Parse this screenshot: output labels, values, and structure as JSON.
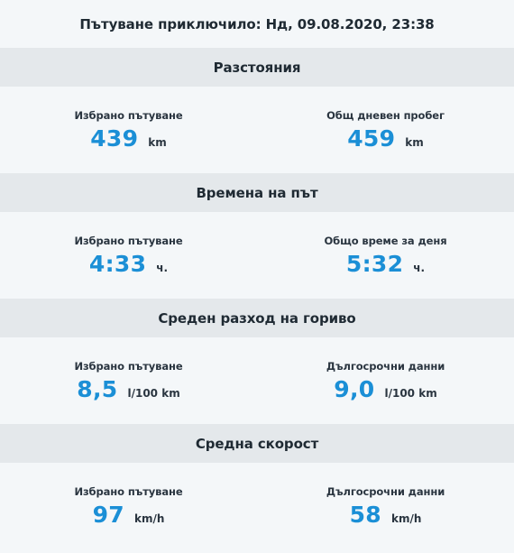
{
  "trip_header": "Пътуване приключило: Нд, 09.08.2020, 23:38",
  "sections": [
    {
      "title": "Разстояния",
      "left": {
        "label": "Избрано пътуване",
        "value": "439",
        "unit": "km"
      },
      "right": {
        "label": "Общ дневен пробег",
        "value": "459",
        "unit": "km"
      }
    },
    {
      "title": "Времена на път",
      "left": {
        "label": "Избрано пътуване",
        "value": "4:33",
        "unit": "ч."
      },
      "right": {
        "label": "Общо време за деня",
        "value": "5:32",
        "unit": "ч."
      }
    },
    {
      "title": "Среден разход на гориво",
      "left": {
        "label": "Избрано пътуване",
        "value": "8,5",
        "unit": "l/100 km"
      },
      "right": {
        "label": "Дългосрочни данни",
        "value": "9,0",
        "unit": "l/100 km"
      }
    },
    {
      "title": "Средна скорост",
      "left": {
        "label": "Избрано пътуване",
        "value": "97",
        "unit": "km/h"
      },
      "right": {
        "label": "Дългосрочни данни",
        "value": "58",
        "unit": "km/h"
      }
    }
  ],
  "colors": {
    "accent": "#1b8fd6",
    "header_bg": "#e4e8eb",
    "body_bg": "#f4f7f9"
  }
}
